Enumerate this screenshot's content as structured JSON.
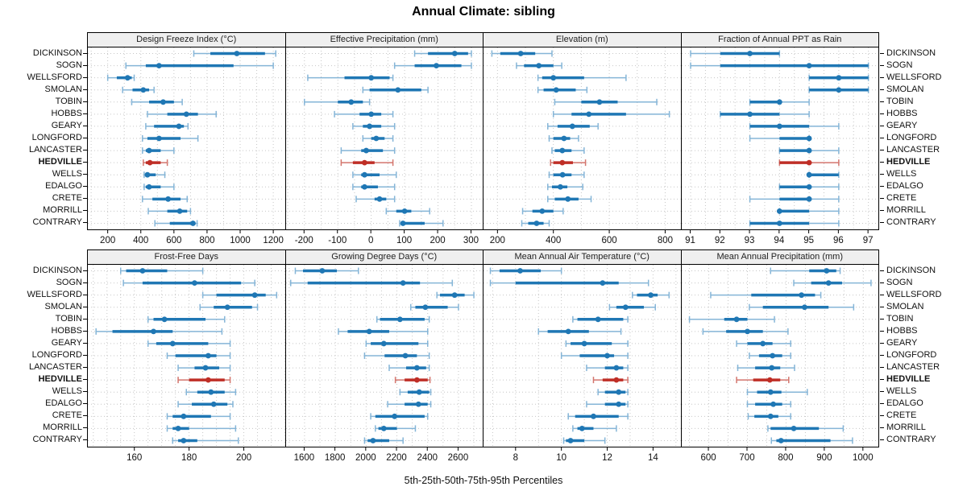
{
  "title": "Annual Climate: sibling",
  "caption": "5th-25th-50th-75th-95th Percentiles",
  "highlight": "HEDVILLE",
  "locations": [
    "DICKINSON",
    "SOGN",
    "WELLSFORD",
    "SMOLAN",
    "TOBIN",
    "HOBBS",
    "GEARY",
    "LONGFORD",
    "LANCASTER",
    "HEDVILLE",
    "WELLS",
    "EDALGO",
    "CRETE",
    "MORRILL",
    "CONTRARY"
  ],
  "colors": {
    "blue": "#1f77b4",
    "blue_light": "#85b5d7",
    "red": "#bf2e26",
    "red_light": "#d3756d",
    "grid": "#c6c6c6",
    "header_bg": "#efefef",
    "border": "#000000"
  },
  "chart_data": [
    {
      "type": "dotplot-percentiles",
      "title": "Design Freeze Index (°C)",
      "row": 0,
      "col": 0,
      "xlim": [
        80,
        1270
      ],
      "ticks": [
        200,
        400,
        600,
        800,
        1000,
        1200
      ],
      "grid_step": 100,
      "percentile_labels": [
        "5th",
        "25th",
        "50th",
        "75th",
        "95th"
      ],
      "values": {
        "DICKINSON": [
          720,
          820,
          980,
          1150,
          1215
        ],
        "SOGN": [
          310,
          430,
          510,
          960,
          1200
        ],
        "WELLSFORD": [
          200,
          255,
          320,
          345,
          360
        ],
        "SMOLAN": [
          290,
          350,
          415,
          450,
          480
        ],
        "TOBIN": [
          345,
          450,
          535,
          600,
          650
        ],
        "HOBBS": [
          440,
          560,
          675,
          745,
          855
        ],
        "GEARY": [
          430,
          480,
          630,
          660,
          685
        ],
        "LONGFORD": [
          410,
          440,
          510,
          640,
          745
        ],
        "LANCASTER": [
          410,
          430,
          450,
          520,
          600
        ],
        "HEDVILLE": [
          415,
          430,
          455,
          520,
          560
        ],
        "WELLS": [
          420,
          425,
          440,
          490,
          545
        ],
        "EDALGO": [
          420,
          430,
          450,
          520,
          600
        ],
        "CRETE": [
          410,
          470,
          565,
          640,
          680
        ],
        "MORRILL": [
          445,
          560,
          635,
          680,
          700
        ],
        "CONTRARY": [
          485,
          575,
          715,
          730,
          740
        ]
      }
    },
    {
      "type": "dotplot-percentiles",
      "title": "Effective Precipitation (mm)",
      "row": 0,
      "col": 1,
      "xlim": [
        -255,
        335
      ],
      "ticks": [
        -200,
        -100,
        0,
        100,
        200,
        300
      ],
      "grid_step": 50,
      "values": {
        "DICKINSON": [
          130,
          170,
          250,
          290,
          300
        ],
        "SOGN": [
          70,
          130,
          195,
          270,
          300
        ],
        "WELLSFORD": [
          -190,
          -80,
          0,
          55,
          65
        ],
        "SMOLAN": [
          -25,
          -5,
          80,
          150,
          170
        ],
        "TOBIN": [
          -200,
          -100,
          -60,
          -25,
          -5
        ],
        "HOBBS": [
          -110,
          -35,
          0,
          30,
          65
        ],
        "GEARY": [
          -55,
          -25,
          -5,
          30,
          70
        ],
        "LONGFORD": [
          -25,
          0,
          15,
          40,
          65
        ],
        "LANCASTER": [
          -90,
          -30,
          -15,
          35,
          70
        ],
        "HEDVILLE": [
          -90,
          -55,
          -20,
          10,
          65
        ],
        "WELLS": [
          -55,
          -30,
          -20,
          25,
          75
        ],
        "EDALGO": [
          -55,
          -30,
          -20,
          20,
          70
        ],
        "CRETE": [
          -45,
          10,
          25,
          45,
          70
        ],
        "MORRILL": [
          45,
          75,
          100,
          120,
          175
        ],
        "CONTRARY": [
          85,
          90,
          95,
          160,
          215
        ]
      }
    },
    {
      "type": "dotplot-percentiles",
      "title": "Elevation (m)",
      "row": 0,
      "col": 2,
      "xlim": [
        150,
        855
      ],
      "ticks": [
        200,
        400,
        600,
        800
      ],
      "grid_step": 100,
      "values": {
        "DICKINSON": [
          180,
          210,
          283,
          335,
          395
        ],
        "SOGN": [
          268,
          295,
          348,
          400,
          430
        ],
        "WELLSFORD": [
          345,
          360,
          400,
          510,
          660
        ],
        "SMOLAN": [
          345,
          365,
          410,
          480,
          520
        ],
        "TOBIN": [
          405,
          500,
          565,
          630,
          770
        ],
        "HOBBS": [
          400,
          465,
          527,
          660,
          815
        ],
        "GEARY": [
          380,
          415,
          468,
          530,
          560
        ],
        "LONGFORD": [
          385,
          400,
          438,
          460,
          490
        ],
        "LANCASTER": [
          395,
          405,
          432,
          465,
          510
        ],
        "HEDVILLE": [
          390,
          400,
          432,
          470,
          515
        ],
        "WELLS": [
          385,
          400,
          433,
          465,
          510
        ],
        "EDALGO": [
          380,
          395,
          425,
          450,
          505
        ],
        "CRETE": [
          380,
          405,
          452,
          490,
          535
        ],
        "MORRILL": [
          290,
          325,
          360,
          400,
          435
        ],
        "CONTRARY": [
          287,
          310,
          340,
          365,
          385
        ]
      }
    },
    {
      "type": "dotplot-percentiles",
      "title": "Fraction of Annual PPT as Rain",
      "row": 0,
      "col": 3,
      "xlim": [
        90.7,
        97.35
      ],
      "ticks": [
        91,
        92,
        93,
        94,
        95,
        96,
        97
      ],
      "grid_step": 0.5,
      "values": {
        "DICKINSON": [
          91,
          92,
          93,
          94,
          94
        ],
        "SOGN": [
          91,
          92,
          95,
          97,
          97
        ],
        "WELLSFORD": [
          95,
          95,
          96,
          97,
          97
        ],
        "SMOLAN": [
          95,
          95,
          96,
          97,
          97
        ],
        "TOBIN": [
          93,
          93,
          94,
          94,
          95
        ],
        "HOBBS": [
          92,
          92,
          93,
          94,
          95
        ],
        "GEARY": [
          93,
          93,
          94,
          95,
          96
        ],
        "LONGFORD": [
          93,
          94,
          95,
          95,
          95
        ],
        "LANCASTER": [
          94,
          94,
          95,
          95,
          96
        ],
        "HEDVILLE": [
          94,
          94,
          95,
          95,
          96
        ],
        "WELLS": [
          95,
          95,
          95,
          96,
          96
        ],
        "EDALGO": [
          94,
          94,
          95,
          95,
          96
        ],
        "CRETE": [
          93,
          94,
          95,
          95,
          96
        ],
        "MORRILL": [
          94,
          94,
          94,
          95,
          96
        ],
        "CONTRARY": [
          93,
          93,
          94,
          95,
          96
        ]
      }
    },
    {
      "type": "dotplot-percentiles",
      "title": "Frost-Free Days",
      "row": 1,
      "col": 0,
      "xlim": [
        143,
        215
      ],
      "ticks": [
        160,
        180,
        200
      ],
      "grid_step": 5,
      "values": {
        "DICKINSON": [
          155,
          157,
          163,
          172,
          185
        ],
        "SOGN": [
          156,
          163,
          182,
          199,
          204
        ],
        "WELLSFORD": [
          185,
          190,
          204,
          208,
          212
        ],
        "SMOLAN": [
          184,
          189,
          194,
          203,
          205
        ],
        "TOBIN": [
          165,
          167,
          171,
          186,
          193
        ],
        "HOBBS": [
          146,
          152,
          167,
          174,
          192
        ],
        "GEARY": [
          165,
          168,
          174,
          187,
          195
        ],
        "LONGFORD": [
          172,
          175,
          187,
          190,
          195
        ],
        "LANCASTER": [
          176,
          182,
          186,
          191,
          195
        ],
        "HEDVILLE": [
          176,
          180,
          187,
          193,
          195
        ],
        "WELLS": [
          179,
          183,
          188,
          193,
          197
        ],
        "EDALGO": [
          176,
          181,
          189,
          194,
          196
        ],
        "CRETE": [
          172,
          174,
          178,
          188,
          195
        ],
        "MORRILL": [
          172,
          174,
          176,
          180,
          197
        ],
        "CONTRARY": [
          174,
          176,
          178,
          183,
          198
        ]
      }
    },
    {
      "type": "dotplot-percentiles",
      "title": "Growing Degree Days (°C)",
      "row": 1,
      "col": 1,
      "xlim": [
        1480,
        2760
      ],
      "ticks": [
        1600,
        1800,
        2000,
        2200,
        2400,
        2600
      ],
      "grid_step": 100,
      "values": {
        "DICKINSON": [
          1540,
          1590,
          1715,
          1810,
          1950
        ],
        "SOGN": [
          1510,
          1620,
          2240,
          2350,
          2560
        ],
        "WELLSFORD": [
          2460,
          2480,
          2575,
          2640,
          2700
        ],
        "SMOLAN": [
          2290,
          2320,
          2385,
          2530,
          2600
        ],
        "TOBIN": [
          2070,
          2090,
          2220,
          2380,
          2410
        ],
        "HOBBS": [
          1820,
          1880,
          2020,
          2150,
          2400
        ],
        "GEARY": [
          2000,
          2030,
          2115,
          2340,
          2400
        ],
        "LONGFORD": [
          1990,
          2120,
          2255,
          2330,
          2410
        ],
        "LANCASTER": [
          2150,
          2260,
          2330,
          2390,
          2410
        ],
        "HEDVILLE": [
          2190,
          2250,
          2330,
          2400,
          2415
        ],
        "WELLS": [
          2220,
          2270,
          2345,
          2410,
          2420
        ],
        "EDALGO": [
          2140,
          2250,
          2340,
          2400,
          2420
        ],
        "CRETE": [
          2030,
          2060,
          2185,
          2380,
          2400
        ],
        "MORRILL": [
          2060,
          2080,
          2115,
          2200,
          2320
        ],
        "CONTRARY": [
          1990,
          2010,
          2045,
          2150,
          2240
        ]
      }
    },
    {
      "type": "dotplot-percentiles",
      "title": "Mean Annual Air Temperature (°C)",
      "row": 1,
      "col": 2,
      "xlim": [
        6.6,
        15.2
      ],
      "ticks": [
        8,
        10,
        12,
        14
      ],
      "grid_step": 1,
      "values": {
        "DICKINSON": [
          6.9,
          7.3,
          8.2,
          9.1,
          10.0
        ],
        "SOGN": [
          6.9,
          8.0,
          11.8,
          12.5,
          13.8
        ],
        "WELLSFORD": [
          13.1,
          13.3,
          13.9,
          14.2,
          14.7
        ],
        "SMOLAN": [
          12.1,
          12.4,
          12.8,
          13.6,
          14.1
        ],
        "TOBIN": [
          10.5,
          10.7,
          11.6,
          12.7,
          12.9
        ],
        "HOBBS": [
          9.0,
          9.4,
          10.3,
          11.2,
          12.6
        ],
        "GEARY": [
          10.2,
          10.4,
          11.0,
          12.2,
          12.9
        ],
        "LONGFORD": [
          10.0,
          10.8,
          12.0,
          12.3,
          12.9
        ],
        "LANCASTER": [
          11.1,
          11.9,
          12.4,
          12.7,
          12.9
        ],
        "HEDVILLE": [
          11.4,
          11.8,
          12.4,
          12.7,
          12.9
        ],
        "WELLS": [
          11.6,
          11.9,
          12.5,
          12.8,
          12.9
        ],
        "EDALGO": [
          11.1,
          11.9,
          12.5,
          12.8,
          12.9
        ],
        "CRETE": [
          10.3,
          10.6,
          11.4,
          12.5,
          12.9
        ],
        "MORRILL": [
          10.5,
          10.7,
          10.9,
          11.4,
          12.4
        ],
        "CONTRARY": [
          10.1,
          10.2,
          10.4,
          11.0,
          11.9
        ]
      }
    },
    {
      "type": "dotplot-percentiles",
      "title": "Mean Annual Precipitation (mm)",
      "row": 1,
      "col": 3,
      "xlim": [
        530,
        1040
      ],
      "ticks": [
        600,
        700,
        800,
        900,
        1000
      ],
      "grid_step": 50,
      "values": {
        "DICKINSON": [
          760,
          860,
          905,
          930,
          940
        ],
        "SOGN": [
          820,
          865,
          910,
          945,
          1020
        ],
        "WELLSFORD": [
          605,
          710,
          840,
          875,
          890
        ],
        "SMOLAN": [
          705,
          740,
          848,
          910,
          975
        ],
        "TOBIN": [
          550,
          640,
          672,
          700,
          770
        ],
        "HOBBS": [
          585,
          645,
          700,
          740,
          805
        ],
        "GEARY": [
          672,
          700,
          740,
          765,
          812
        ],
        "LONGFORD": [
          705,
          730,
          765,
          790,
          812
        ],
        "LANCASTER": [
          675,
          720,
          763,
          785,
          822
        ],
        "HEDVILLE": [
          672,
          715,
          758,
          785,
          807
        ],
        "WELLS": [
          700,
          725,
          760,
          788,
          855
        ],
        "EDALGO": [
          700,
          720,
          767,
          790,
          812
        ],
        "CRETE": [
          702,
          718,
          760,
          780,
          812
        ],
        "MORRILL": [
          753,
          760,
          820,
          885,
          948
        ],
        "CONTRARY": [
          762,
          775,
          787,
          915,
          972
        ]
      }
    }
  ]
}
